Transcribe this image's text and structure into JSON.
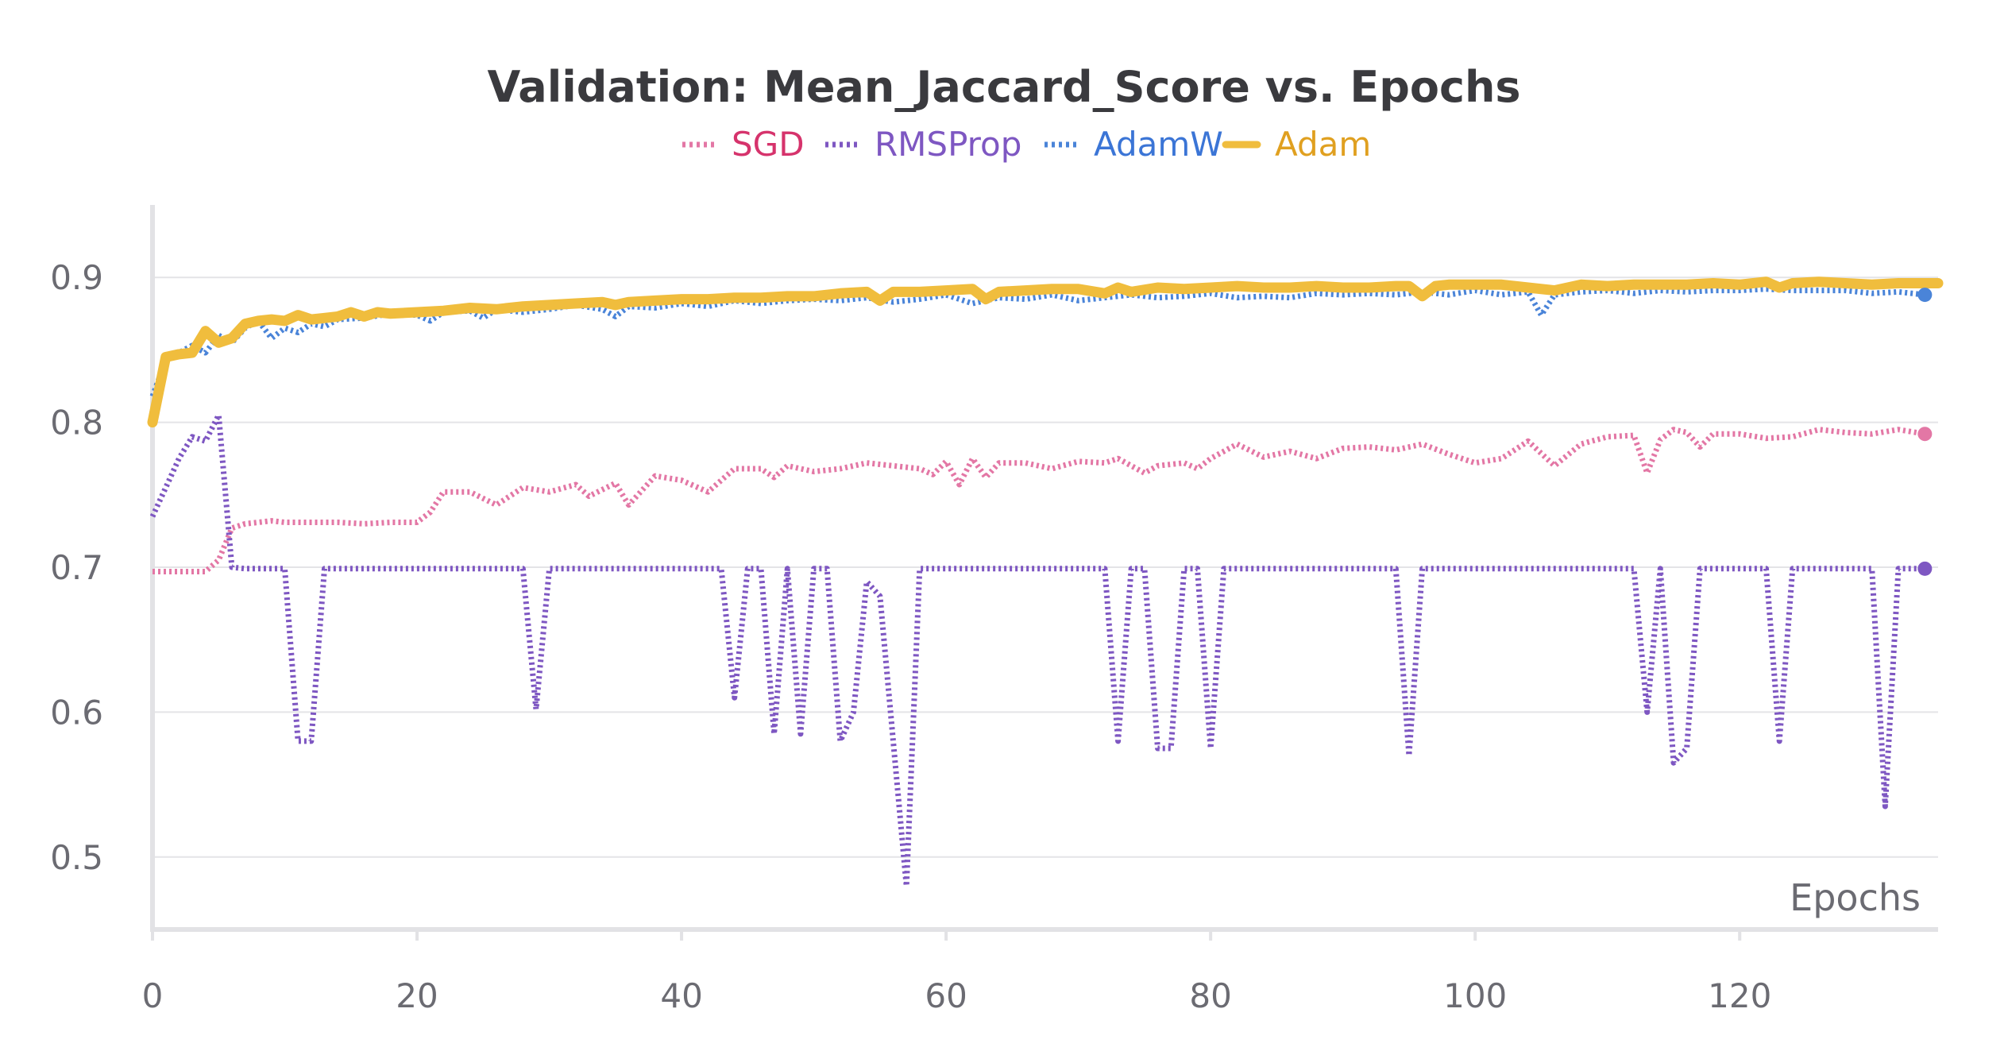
{
  "chart_data": {
    "type": "line",
    "title": "Validation: Mean_Jaccard_Score vs. Epochs",
    "xlabel": "Epochs",
    "ylabel": "",
    "xlim": [
      0,
      135
    ],
    "ylim": [
      0.45,
      0.95
    ],
    "x_ticks": [
      0,
      20,
      40,
      60,
      80,
      100,
      120
    ],
    "y_ticks": [
      0.5,
      0.6,
      0.7,
      0.8,
      0.9
    ],
    "grid": true,
    "legend_position": "top",
    "series": [
      {
        "name": "SGD",
        "color": "#e377a5",
        "label_color": "#d6336c",
        "style": "dotted",
        "points": [
          [
            0,
            0.697
          ],
          [
            1,
            0.697
          ],
          [
            2,
            0.697
          ],
          [
            3,
            0.697
          ],
          [
            4,
            0.697
          ],
          [
            5,
            0.705
          ],
          [
            6,
            0.727
          ],
          [
            7,
            0.73
          ],
          [
            8,
            0.731
          ],
          [
            9,
            0.732
          ],
          [
            10,
            0.731
          ],
          [
            12,
            0.731
          ],
          [
            14,
            0.731
          ],
          [
            16,
            0.73
          ],
          [
            18,
            0.731
          ],
          [
            20,
            0.731
          ],
          [
            21,
            0.738
          ],
          [
            22,
            0.752
          ],
          [
            24,
            0.752
          ],
          [
            26,
            0.743
          ],
          [
            28,
            0.755
          ],
          [
            30,
            0.752
          ],
          [
            32,
            0.757
          ],
          [
            33,
            0.749
          ],
          [
            35,
            0.758
          ],
          [
            36,
            0.743
          ],
          [
            38,
            0.763
          ],
          [
            40,
            0.76
          ],
          [
            42,
            0.752
          ],
          [
            44,
            0.768
          ],
          [
            46,
            0.768
          ],
          [
            47,
            0.762
          ],
          [
            48,
            0.77
          ],
          [
            50,
            0.766
          ],
          [
            52,
            0.768
          ],
          [
            54,
            0.772
          ],
          [
            56,
            0.77
          ],
          [
            58,
            0.768
          ],
          [
            59,
            0.764
          ],
          [
            60,
            0.773
          ],
          [
            61,
            0.757
          ],
          [
            62,
            0.775
          ],
          [
            63,
            0.762
          ],
          [
            64,
            0.772
          ],
          [
            66,
            0.772
          ],
          [
            68,
            0.768
          ],
          [
            70,
            0.773
          ],
          [
            72,
            0.772
          ],
          [
            73,
            0.775
          ],
          [
            75,
            0.765
          ],
          [
            76,
            0.77
          ],
          [
            78,
            0.772
          ],
          [
            79,
            0.768
          ],
          [
            80,
            0.775
          ],
          [
            82,
            0.785
          ],
          [
            84,
            0.776
          ],
          [
            86,
            0.78
          ],
          [
            88,
            0.775
          ],
          [
            90,
            0.782
          ],
          [
            92,
            0.783
          ],
          [
            94,
            0.781
          ],
          [
            96,
            0.785
          ],
          [
            98,
            0.778
          ],
          [
            100,
            0.772
          ],
          [
            102,
            0.775
          ],
          [
            104,
            0.787
          ],
          [
            106,
            0.77
          ],
          [
            108,
            0.785
          ],
          [
            110,
            0.79
          ],
          [
            112,
            0.791
          ],
          [
            113,
            0.765
          ],
          [
            114,
            0.788
          ],
          [
            115,
            0.795
          ],
          [
            116,
            0.793
          ],
          [
            117,
            0.783
          ],
          [
            118,
            0.792
          ],
          [
            120,
            0.792
          ],
          [
            122,
            0.789
          ],
          [
            124,
            0.79
          ],
          [
            126,
            0.795
          ],
          [
            128,
            0.793
          ],
          [
            130,
            0.792
          ],
          [
            132,
            0.795
          ],
          [
            134,
            0.792
          ]
        ]
      },
      {
        "name": "RMSProp",
        "color": "#7e57c2",
        "label_color": "#7e57c2",
        "style": "dotted",
        "points": [
          [
            0,
            0.735
          ],
          [
            1,
            0.755
          ],
          [
            2,
            0.775
          ],
          [
            3,
            0.79
          ],
          [
            4,
            0.787
          ],
          [
            5,
            0.805
          ],
          [
            6,
            0.7
          ],
          [
            7,
            0.699
          ],
          [
            10,
            0.699
          ],
          [
            11,
            0.58
          ],
          [
            12,
            0.58
          ],
          [
            13,
            0.699
          ],
          [
            28,
            0.699
          ],
          [
            29,
            0.602
          ],
          [
            30,
            0.699
          ],
          [
            43,
            0.699
          ],
          [
            44,
            0.61
          ],
          [
            45,
            0.699
          ],
          [
            46,
            0.699
          ],
          [
            47,
            0.585
          ],
          [
            48,
            0.699
          ],
          [
            49,
            0.585
          ],
          [
            50,
            0.699
          ],
          [
            51,
            0.699
          ],
          [
            52,
            0.58
          ],
          [
            53,
            0.6
          ],
          [
            54,
            0.69
          ],
          [
            55,
            0.68
          ],
          [
            56,
            0.58
          ],
          [
            57,
            0.48
          ],
          [
            58,
            0.699
          ],
          [
            72,
            0.699
          ],
          [
            73,
            0.58
          ],
          [
            74,
            0.699
          ],
          [
            75,
            0.699
          ],
          [
            76,
            0.575
          ],
          [
            77,
            0.575
          ],
          [
            78,
            0.699
          ],
          [
            79,
            0.699
          ],
          [
            80,
            0.575
          ],
          [
            81,
            0.699
          ],
          [
            94,
            0.699
          ],
          [
            95,
            0.57
          ],
          [
            96,
            0.699
          ],
          [
            112,
            0.699
          ],
          [
            113,
            0.6
          ],
          [
            114,
            0.699
          ],
          [
            115,
            0.565
          ],
          [
            116,
            0.575
          ],
          [
            117,
            0.699
          ],
          [
            122,
            0.699
          ],
          [
            123,
            0.58
          ],
          [
            124,
            0.699
          ],
          [
            130,
            0.699
          ],
          [
            131,
            0.535
          ],
          [
            132,
            0.699
          ],
          [
            134,
            0.699
          ]
        ]
      },
      {
        "name": "AdamW",
        "color": "#4a84d8",
        "label_color": "#3b75d6",
        "style": "dotted",
        "points": [
          [
            0,
            0.818
          ],
          [
            1,
            0.843
          ],
          [
            2,
            0.848
          ],
          [
            3,
            0.853
          ],
          [
            4,
            0.848
          ],
          [
            5,
            0.86
          ],
          [
            6,
            0.855
          ],
          [
            7,
            0.865
          ],
          [
            8,
            0.87
          ],
          [
            9,
            0.858
          ],
          [
            10,
            0.865
          ],
          [
            11,
            0.862
          ],
          [
            12,
            0.868
          ],
          [
            13,
            0.866
          ],
          [
            14,
            0.871
          ],
          [
            16,
            0.872
          ],
          [
            18,
            0.875
          ],
          [
            20,
            0.874
          ],
          [
            21,
            0.87
          ],
          [
            22,
            0.876
          ],
          [
            24,
            0.877
          ],
          [
            25,
            0.872
          ],
          [
            26,
            0.878
          ],
          [
            28,
            0.876
          ],
          [
            30,
            0.878
          ],
          [
            32,
            0.881
          ],
          [
            34,
            0.878
          ],
          [
            35,
            0.873
          ],
          [
            36,
            0.88
          ],
          [
            38,
            0.879
          ],
          [
            40,
            0.882
          ],
          [
            42,
            0.88
          ],
          [
            44,
            0.884
          ],
          [
            46,
            0.882
          ],
          [
            48,
            0.884
          ],
          [
            50,
            0.885
          ],
          [
            52,
            0.884
          ],
          [
            54,
            0.886
          ],
          [
            56,
            0.883
          ],
          [
            58,
            0.885
          ],
          [
            60,
            0.888
          ],
          [
            62,
            0.882
          ],
          [
            64,
            0.886
          ],
          [
            66,
            0.885
          ],
          [
            68,
            0.888
          ],
          [
            70,
            0.884
          ],
          [
            72,
            0.886
          ],
          [
            74,
            0.888
          ],
          [
            76,
            0.886
          ],
          [
            78,
            0.887
          ],
          [
            80,
            0.889
          ],
          [
            82,
            0.886
          ],
          [
            84,
            0.887
          ],
          [
            86,
            0.886
          ],
          [
            88,
            0.889
          ],
          [
            90,
            0.888
          ],
          [
            92,
            0.889
          ],
          [
            94,
            0.888
          ],
          [
            96,
            0.89
          ],
          [
            98,
            0.888
          ],
          [
            100,
            0.891
          ],
          [
            102,
            0.888
          ],
          [
            104,
            0.89
          ],
          [
            105,
            0.874
          ],
          [
            106,
            0.888
          ],
          [
            108,
            0.89
          ],
          [
            110,
            0.891
          ],
          [
            112,
            0.889
          ],
          [
            114,
            0.891
          ],
          [
            116,
            0.89
          ],
          [
            118,
            0.891
          ],
          [
            120,
            0.891
          ],
          [
            122,
            0.892
          ],
          [
            124,
            0.891
          ],
          [
            126,
            0.891
          ],
          [
            128,
            0.891
          ],
          [
            130,
            0.889
          ],
          [
            132,
            0.89
          ],
          [
            134,
            0.888
          ]
        ]
      },
      {
        "name": "Adam",
        "color": "#f0bd3d",
        "label_color": "#e0a020",
        "style": "solid",
        "points": [
          [
            0,
            0.8
          ],
          [
            1,
            0.845
          ],
          [
            2,
            0.847
          ],
          [
            3,
            0.848
          ],
          [
            4,
            0.863
          ],
          [
            5,
            0.855
          ],
          [
            6,
            0.858
          ],
          [
            7,
            0.868
          ],
          [
            8,
            0.87
          ],
          [
            9,
            0.871
          ],
          [
            10,
            0.87
          ],
          [
            11,
            0.874
          ],
          [
            12,
            0.871
          ],
          [
            13,
            0.872
          ],
          [
            14,
            0.873
          ],
          [
            15,
            0.876
          ],
          [
            16,
            0.873
          ],
          [
            17,
            0.876
          ],
          [
            18,
            0.875
          ],
          [
            20,
            0.876
          ],
          [
            22,
            0.877
          ],
          [
            24,
            0.879
          ],
          [
            26,
            0.878
          ],
          [
            28,
            0.88
          ],
          [
            30,
            0.881
          ],
          [
            32,
            0.882
          ],
          [
            34,
            0.883
          ],
          [
            35,
            0.881
          ],
          [
            36,
            0.883
          ],
          [
            38,
            0.884
          ],
          [
            40,
            0.885
          ],
          [
            42,
            0.885
          ],
          [
            44,
            0.886
          ],
          [
            46,
            0.886
          ],
          [
            48,
            0.887
          ],
          [
            50,
            0.887
          ],
          [
            52,
            0.889
          ],
          [
            54,
            0.89
          ],
          [
            55,
            0.884
          ],
          [
            56,
            0.89
          ],
          [
            58,
            0.89
          ],
          [
            60,
            0.891
          ],
          [
            62,
            0.892
          ],
          [
            63,
            0.885
          ],
          [
            64,
            0.89
          ],
          [
            66,
            0.891
          ],
          [
            68,
            0.892
          ],
          [
            70,
            0.892
          ],
          [
            72,
            0.889
          ],
          [
            73,
            0.893
          ],
          [
            74,
            0.89
          ],
          [
            76,
            0.893
          ],
          [
            78,
            0.892
          ],
          [
            80,
            0.893
          ],
          [
            82,
            0.894
          ],
          [
            84,
            0.893
          ],
          [
            86,
            0.893
          ],
          [
            88,
            0.894
          ],
          [
            90,
            0.893
          ],
          [
            92,
            0.893
          ],
          [
            94,
            0.894
          ],
          [
            95,
            0.894
          ],
          [
            96,
            0.887
          ],
          [
            97,
            0.894
          ],
          [
            98,
            0.895
          ],
          [
            100,
            0.895
          ],
          [
            102,
            0.895
          ],
          [
            104,
            0.893
          ],
          [
            106,
            0.891
          ],
          [
            108,
            0.895
          ],
          [
            110,
            0.894
          ],
          [
            112,
            0.895
          ],
          [
            114,
            0.895
          ],
          [
            116,
            0.895
          ],
          [
            118,
            0.896
          ],
          [
            120,
            0.895
          ],
          [
            122,
            0.897
          ],
          [
            123,
            0.893
          ],
          [
            124,
            0.896
          ],
          [
            126,
            0.897
          ],
          [
            128,
            0.896
          ],
          [
            130,
            0.895
          ],
          [
            132,
            0.896
          ],
          [
            134,
            0.896
          ],
          [
            135,
            0.896
          ]
        ]
      }
    ]
  }
}
